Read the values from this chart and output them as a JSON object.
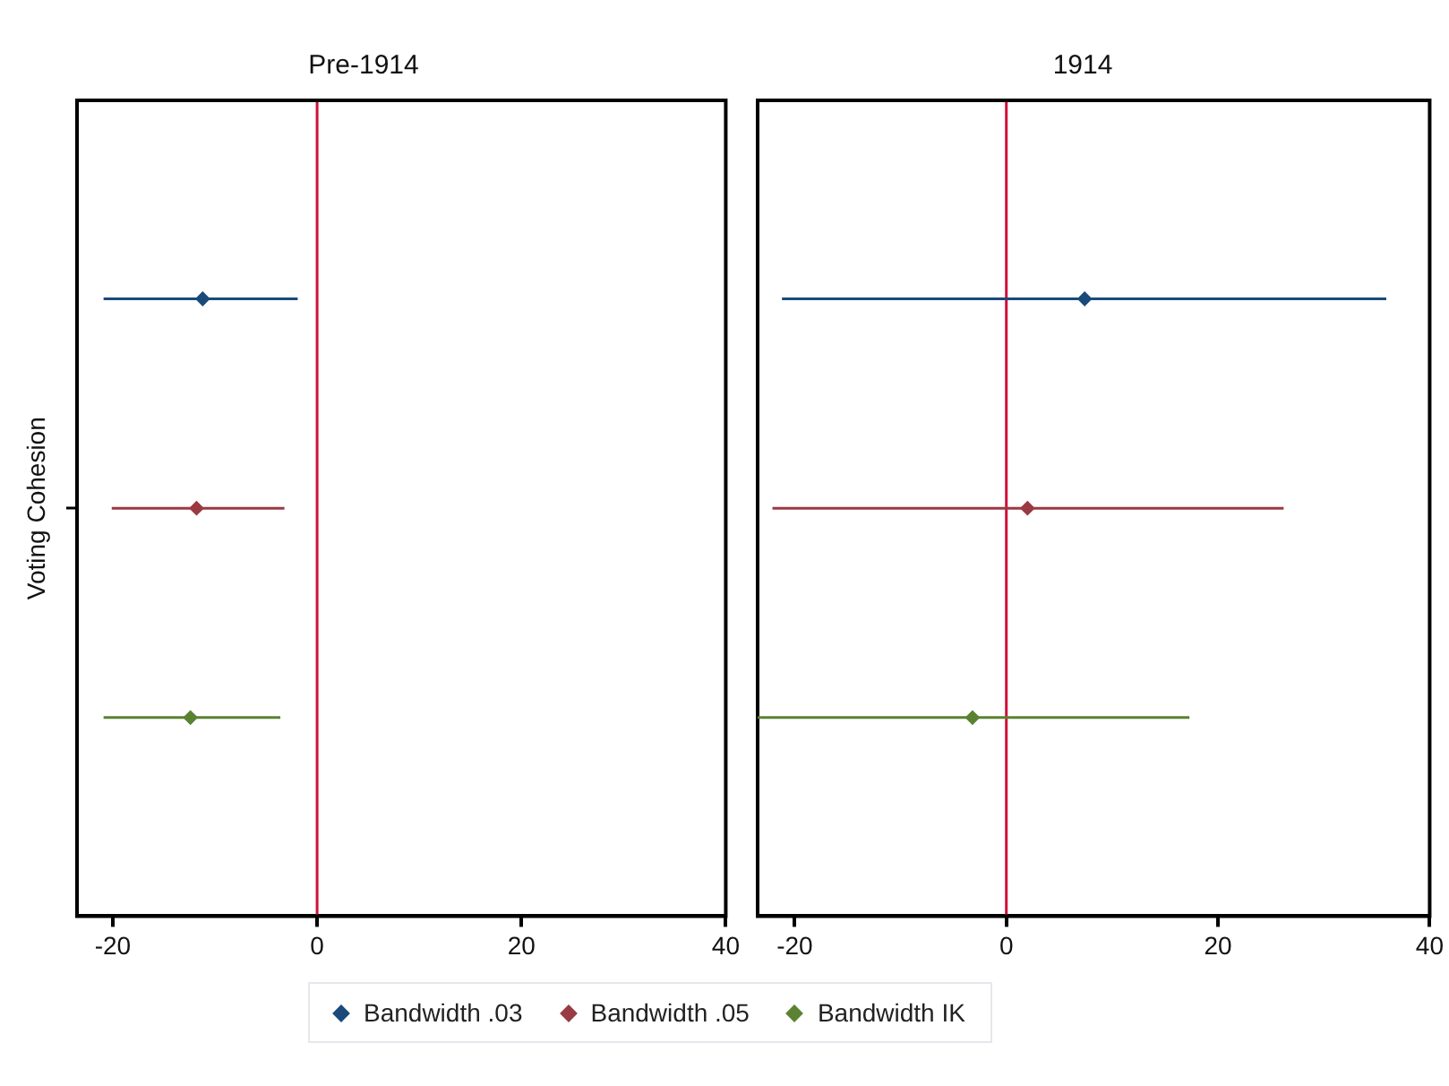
{
  "chart_data": [
    {
      "type": "scatter",
      "title": "Pre-1914",
      "orientation": "horizontal",
      "categories": [
        "Voting Cohesion"
      ],
      "xlim": [
        -23.5,
        40
      ],
      "xticks": [
        -20,
        0,
        20,
        40
      ],
      "grid": false,
      "marker": "diamond",
      "legend": "bottom",
      "series": [
        {
          "name": "Bandwidth .03",
          "color": "#1a4a7a",
          "values": [
            -11.2
          ],
          "errors": [
            [
              -20.9,
              -1.9
            ]
          ]
        },
        {
          "name": "Bandwidth .05",
          "color": "#9a3a42",
          "values": [
            -11.8
          ],
          "errors": [
            [
              -20.1,
              -3.2
            ]
          ]
        },
        {
          "name": "Bandwidth IK",
          "color": "#5a8232",
          "values": [
            -12.4
          ],
          "errors": [
            [
              -20.9,
              -3.6
            ]
          ]
        }
      ],
      "ref_lines": [
        {
          "axis": "x",
          "value": 0,
          "color": "#d0103a"
        }
      ]
    },
    {
      "type": "scatter",
      "title": "1914",
      "orientation": "horizontal",
      "categories": [
        null
      ],
      "xlim": [
        -23.5,
        40
      ],
      "xticks": [
        -20,
        0,
        20,
        40
      ],
      "grid": false,
      "marker": "diamond",
      "tick_labels": "x",
      "series": [
        {
          "color": "#1a4a7a",
          "values": [
            7.4
          ],
          "errors": [
            [
              -21.2,
              35.9
            ]
          ]
        },
        {
          "color": "#9a3a42",
          "values": [
            2.0
          ],
          "errors": [
            [
              -22.1,
              26.2
            ]
          ]
        },
        {
          "color": "#5a8232",
          "values": [
            -3.2
          ],
          "errors": [
            [
              -23.5,
              17.3
            ]
          ]
        }
      ],
      "ref_lines": [
        {
          "axis": "x",
          "value": 0,
          "color": "#d0103a"
        }
      ]
    }
  ]
}
